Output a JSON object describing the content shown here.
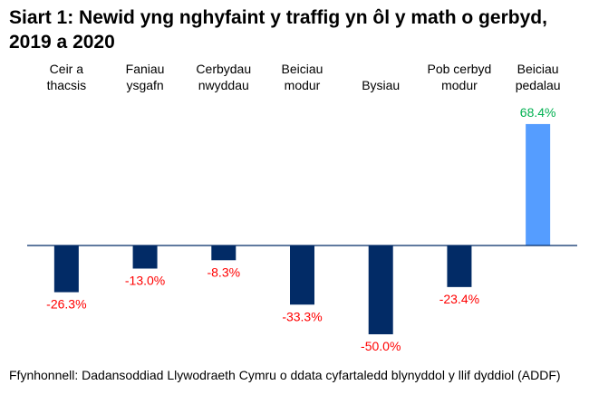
{
  "chart_data": {
    "type": "bar",
    "title": "Siart 1: Newid yng nghyfaint y traffig yn ôl y math o gerbyd, 2019 a 2020",
    "categories": [
      [
        "Ceir a",
        "thacsis"
      ],
      [
        "Faniau",
        "ysgafn"
      ],
      [
        "Cerbydau",
        "nwyddau"
      ],
      [
        "Beiciau",
        "modur"
      ],
      [
        "",
        "Bysiau"
      ],
      [
        "Pob cerbyd",
        "modur"
      ],
      [
        "Beiciau",
        "pedalau"
      ]
    ],
    "values": [
      -26.3,
      -13.0,
      -8.3,
      -33.3,
      -50.0,
      -23.4,
      68.4
    ],
    "data_labels": [
      "-26.3%",
      "-13.0%",
      "-8.3%",
      "-33.3%",
      "-50.0%",
      "-23.4%",
      "68.4%"
    ],
    "unit": "%",
    "xlabel": "",
    "ylabel": "",
    "grid": false,
    "legend": "none",
    "colors": {
      "bar_default": "#022B66",
      "bar_highlight": "#559DFF",
      "label_negative": "#FF0000",
      "label_positive": "#00B050",
      "axis": "#022B66"
    }
  },
  "source": "Ffynhonnell: Dadansoddiad Llywodraeth Cymru o ddata cyfartaledd blynyddol y llif dyddiol (ADDF)"
}
